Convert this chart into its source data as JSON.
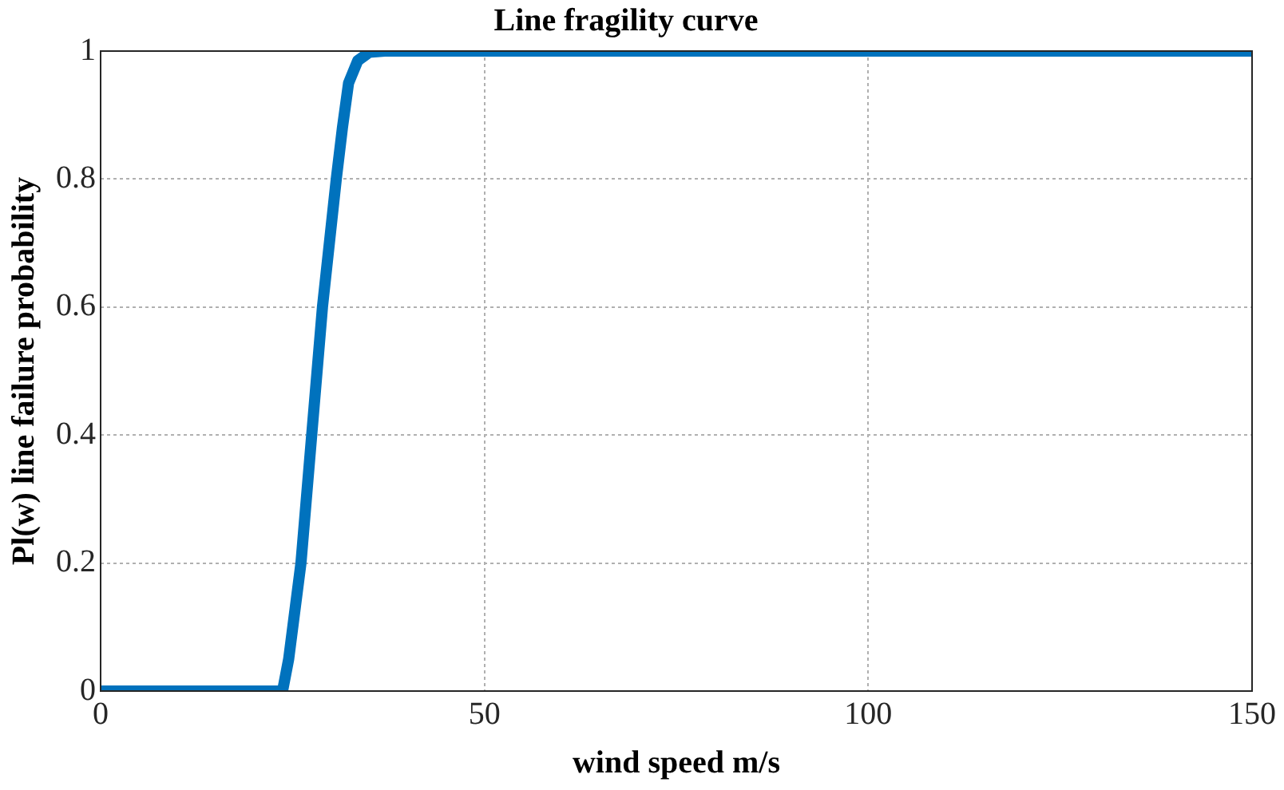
{
  "chart_data": {
    "type": "line",
    "title": "Line fragility curve",
    "xlabel": "wind speed m/s",
    "ylabel": "Pl(w) line failure probability",
    "series": [
      {
        "color": "#0072bd",
        "x": [
          0,
          23.7,
          24.5,
          26.1,
          27.5,
          28.9,
          30.7,
          31.5,
          32.3,
          33.5,
          35,
          37,
          150
        ],
        "values": [
          0,
          0,
          0.05,
          0.2,
          0.4,
          0.6,
          0.8,
          0.88,
          0.95,
          0.985,
          0.998,
          1,
          1
        ]
      }
    ],
    "xlim": [
      0,
      150
    ],
    "xticks": [
      0,
      50,
      100,
      150
    ],
    "ylim": [
      0,
      1
    ],
    "yticks": [
      0,
      0.2,
      0.4,
      0.6,
      0.8,
      1
    ],
    "grid": true,
    "legend": false,
    "marker": "none",
    "line_style": "solid"
  }
}
